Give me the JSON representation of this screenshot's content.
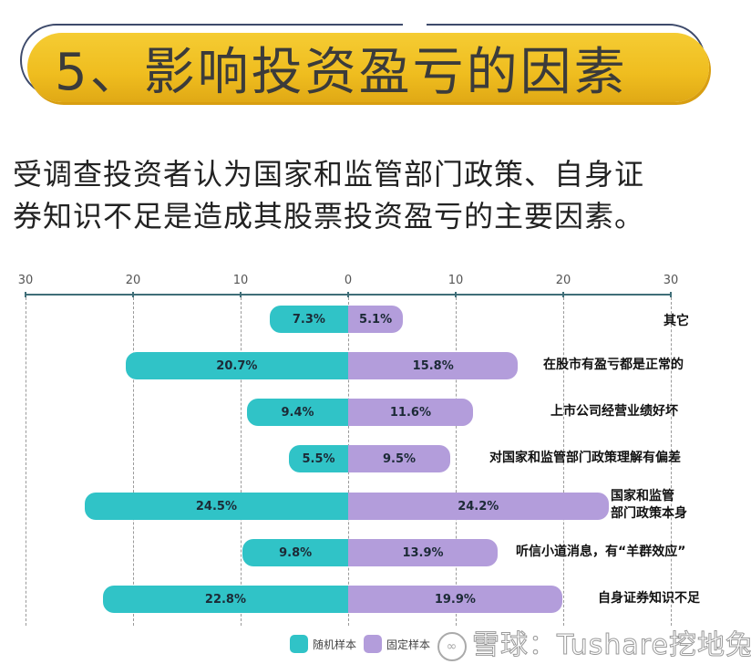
{
  "header": {
    "title": "5、影响投资盈亏的因素",
    "banner_color": "#f0c022"
  },
  "subtitle": {
    "line1": "受调查投资者认为国家和监管部门政策、自身证",
    "line2": "券知识不足是造成其股票投资盈亏的主要因素。"
  },
  "legend": {
    "random": {
      "label": "随机样本",
      "color": "#30c3c7"
    },
    "fixed": {
      "label": "固定样本",
      "color": "#b39ddb"
    }
  },
  "watermark": {
    "logo": "∞",
    "text": "雪球：Tushare挖地兔"
  },
  "chart_data": {
    "type": "bar",
    "orientation": "horizontal-diverging",
    "title": "影响投资盈亏的因素",
    "xlabel": "",
    "ylabel": "",
    "xlim": [
      -30,
      30
    ],
    "tick_labels": [
      "30",
      "20",
      "10",
      "0",
      "10",
      "20",
      "30"
    ],
    "grid": true,
    "legend_position": "bottom",
    "categories": [
      "其它",
      "在股市有盈亏都是正常的",
      "上市公司经营业绩好坏",
      "对国家和监管部门政策理解有偏差",
      "国家和监管部门政策本身",
      "听信小道消息，有“羊群效应”",
      "自身证券知识不足"
    ],
    "category_lines": [
      [
        "其它"
      ],
      [
        "在股市有盈亏都是正常的"
      ],
      [
        "上市公司经营业绩好坏"
      ],
      [
        "对国家和监管部门政策理解有偏差"
      ],
      [
        "国家和监管",
        "部门政策本身"
      ],
      [
        "听信小道消息，有“羊群效应”"
      ],
      [
        "自身证券知识不足"
      ]
    ],
    "series": [
      {
        "name": "随机样本",
        "side": "left",
        "color": "#30c3c7",
        "values": [
          7.3,
          20.7,
          9.4,
          5.5,
          24.5,
          9.8,
          22.8
        ],
        "labels": [
          "7.3%",
          "20.7%",
          "9.4%",
          "5.5%",
          "24.5%",
          "9.8%",
          "22.8%"
        ]
      },
      {
        "name": "固定样本",
        "side": "right",
        "color": "#b39ddb",
        "values": [
          5.1,
          15.8,
          11.6,
          9.5,
          24.2,
          13.9,
          19.9
        ],
        "labels": [
          "5.1%",
          "15.8%",
          "11.6%",
          "9.5%",
          "24.2%",
          "13.9%",
          "19.9%"
        ]
      }
    ]
  }
}
